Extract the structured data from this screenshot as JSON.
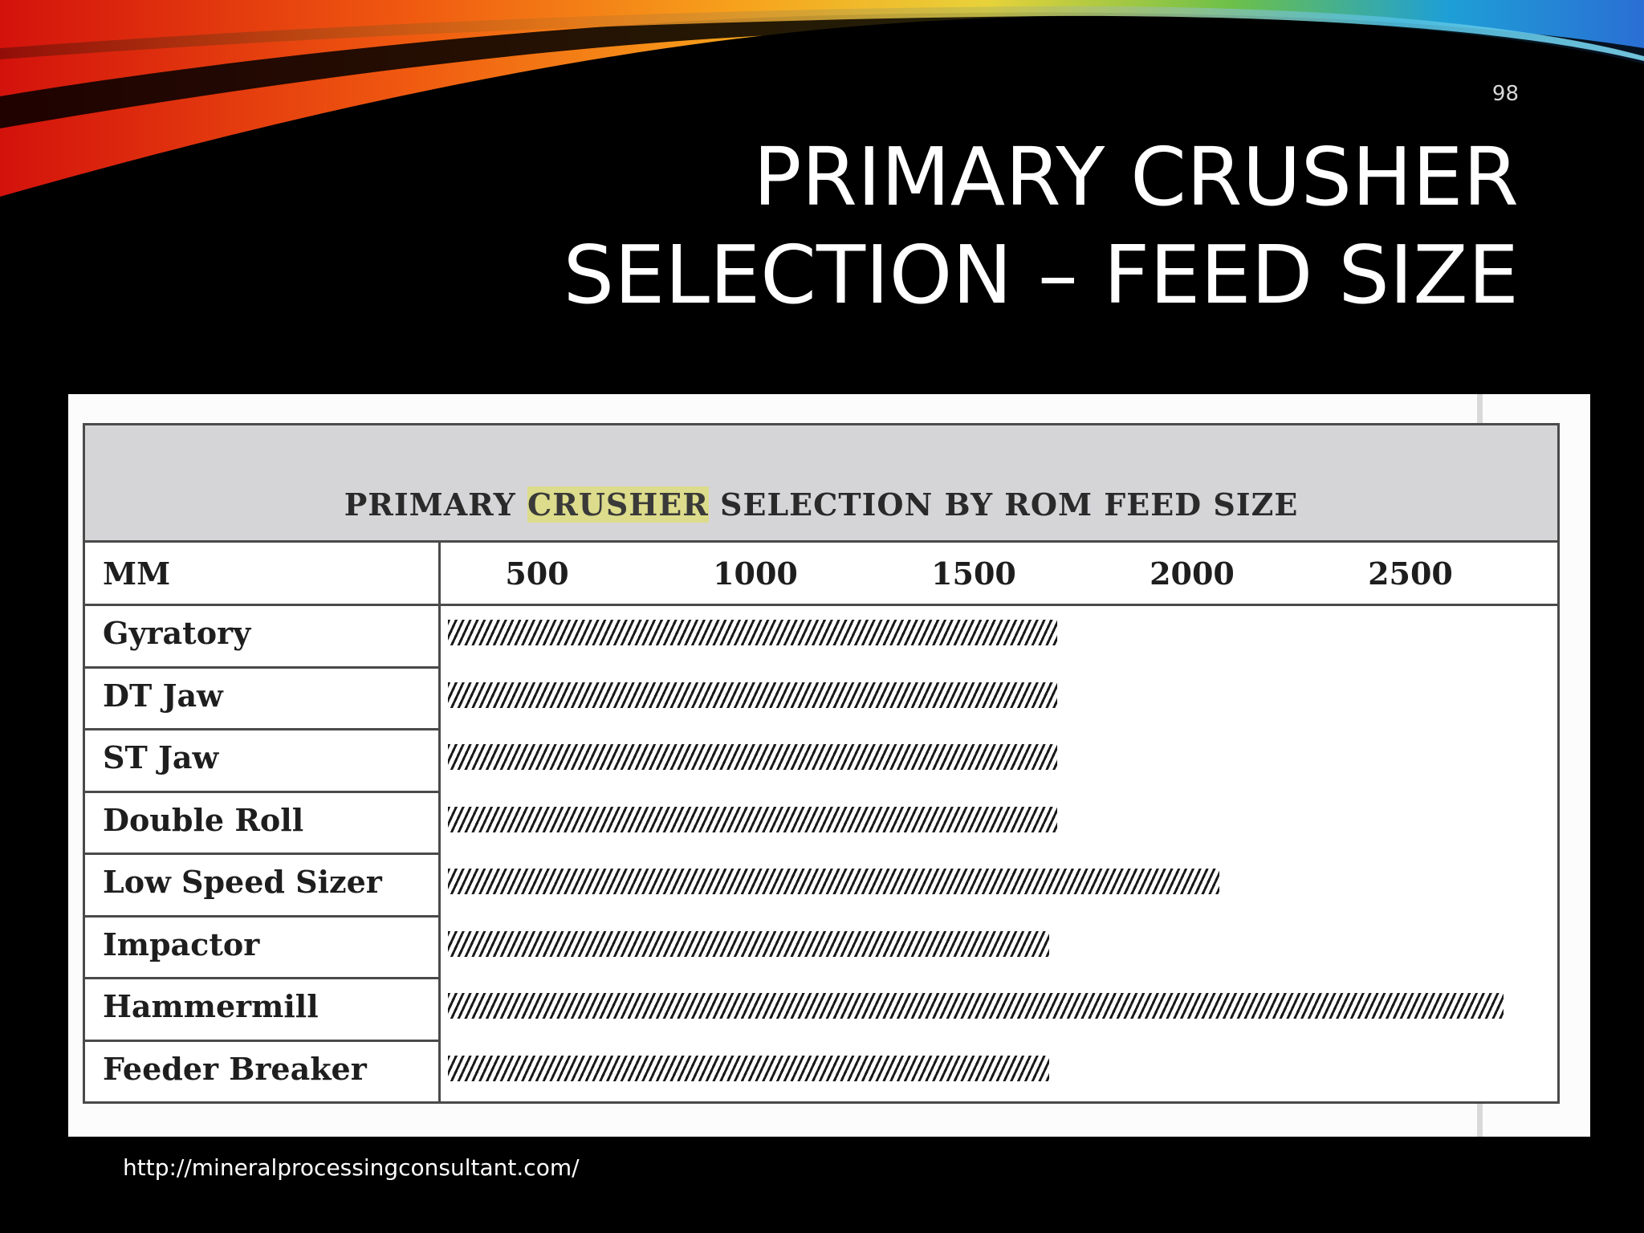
{
  "slide": {
    "page_number": "98",
    "title_line1": "PRIMARY CRUSHER",
    "title_line2": "SELECTION – FEED SIZE",
    "source_link": "http://mineralprocessingconsultant.com/"
  },
  "table": {
    "title_before": "PRIMARY ",
    "title_highlight": "CRUSHER",
    "title_after": " SELECTION BY ROM FEED SIZE",
    "unit_header": "MM"
  },
  "colors": {
    "background": "#000000",
    "header_band": "#d5d5d8",
    "highlight": "#dcdc8c",
    "bar_hatch": "#1a1a1a"
  },
  "chart_data": {
    "type": "bar",
    "orientation": "horizontal",
    "title": "PRIMARY CRUSHER SELECTION BY ROM FEED SIZE",
    "xlabel": "MM",
    "x_ticks": [
      "500",
      "1000",
      "1500",
      "2000",
      "2500"
    ],
    "xlim": [
      0,
      2700
    ],
    "categories": [
      "Gyratory",
      "DT Jaw",
      "ST Jaw",
      "Double Roll",
      "Low Speed Sizer",
      "Impactor",
      "Hammermill",
      "Feeder Breaker"
    ],
    "values": [
      1500,
      1500,
      1500,
      1500,
      1900,
      1480,
      2600,
      1480
    ],
    "grid": false,
    "legend": "none"
  }
}
